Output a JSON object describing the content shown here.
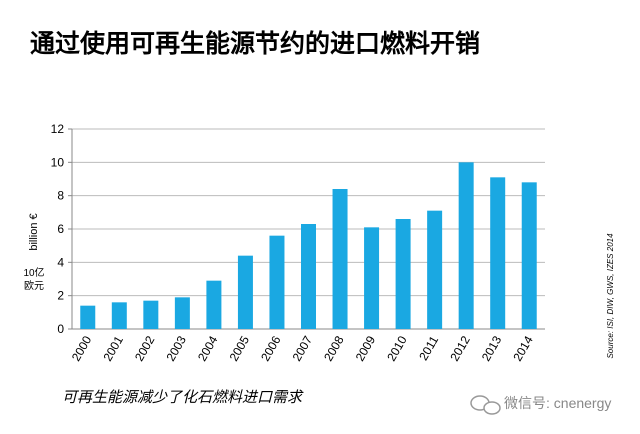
{
  "chart_data": {
    "type": "bar",
    "title": "通过使用可再生能源节约的进口燃料开销",
    "ylabel": "billion €",
    "ylabel_note": [
      "10亿",
      "欧元"
    ],
    "source": "Source: ISI, DIW, GWS, IZES 2014",
    "caption": "可再生能源减少了化石燃料进口需求",
    "watermark": "微信号: cnenergy",
    "categories": [
      "2000",
      "2001",
      "2002",
      "2003",
      "2004",
      "2005",
      "2006",
      "2007",
      "2008",
      "2009",
      "2010",
      "2011",
      "2012",
      "2013",
      "2014"
    ],
    "values": [
      1.4,
      1.6,
      1.7,
      1.9,
      2.9,
      4.4,
      5.6,
      6.3,
      8.4,
      6.1,
      6.6,
      7.1,
      10.0,
      9.1,
      8.8
    ],
    "color": "#1aa8e2",
    "ylim": [
      0,
      12
    ],
    "yticks": [
      0,
      2,
      4,
      6,
      8,
      10,
      12
    ],
    "grid": true
  }
}
